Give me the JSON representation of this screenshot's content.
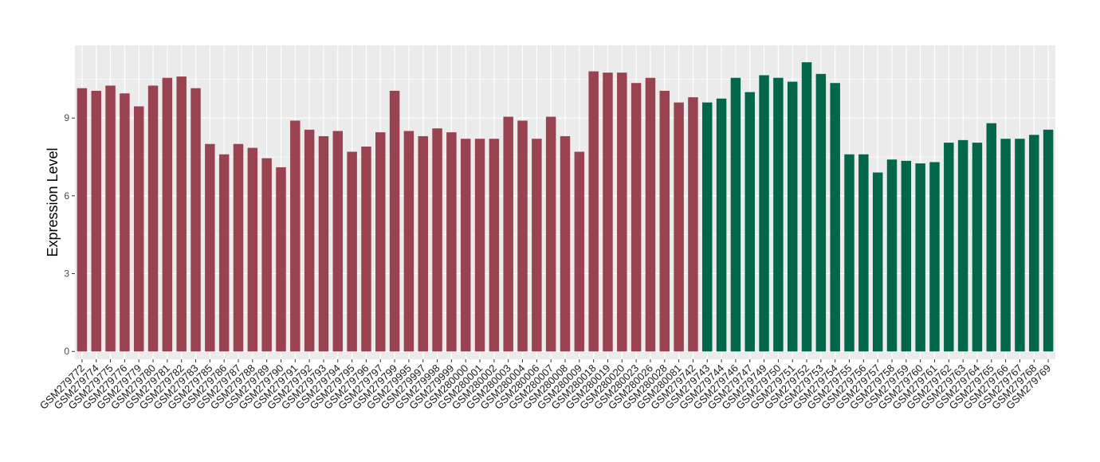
{
  "chart_data": {
    "type": "bar",
    "ylabel": "Expression Level",
    "xlabel": "",
    "ylim": [
      -0.3,
      11.8
    ],
    "yticks": [
      0,
      3,
      6,
      9
    ],
    "grid": true,
    "colors": {
      "group1": "#9a4350",
      "group2": "#02664a",
      "panel": "#ebebeb",
      "gridline": "#ffffff"
    },
    "group1_count": 44,
    "categories": [
      "GSM279772",
      "GSM279774",
      "GSM279775",
      "GSM279776",
      "GSM279779",
      "GSM279780",
      "GSM279781",
      "GSM279782",
      "GSM279783",
      "GSM279785",
      "GSM279786",
      "GSM279787",
      "GSM279788",
      "GSM279789",
      "GSM279790",
      "GSM279791",
      "GSM279792",
      "GSM279793",
      "GSM279794",
      "GSM279795",
      "GSM279796",
      "GSM279797",
      "GSM279799",
      "GSM279995",
      "GSM279997",
      "GSM279998",
      "GSM279999",
      "GSM280000",
      "GSM280001",
      "GSM280002",
      "GSM280003",
      "GSM280004",
      "GSM280006",
      "GSM280007",
      "GSM280008",
      "GSM280009",
      "GSM280018",
      "GSM280019",
      "GSM280020",
      "GSM280023",
      "GSM280026",
      "GSM280028",
      "GSM280081",
      "GSM279742",
      "GSM279743",
      "GSM279744",
      "GSM279746",
      "GSM279747",
      "GSM279749",
      "GSM279750",
      "GSM279751",
      "GSM279752",
      "GSM279753",
      "GSM279754",
      "GSM279755",
      "GSM279756",
      "GSM279757",
      "GSM279758",
      "GSM279759",
      "GSM279760",
      "GSM279761",
      "GSM279762",
      "GSM279763",
      "GSM279764",
      "GSM279765",
      "GSM279766",
      "GSM279767",
      "GSM279768",
      "GSM279769"
    ],
    "values": [
      10.15,
      10.05,
      10.25,
      9.95,
      9.45,
      10.25,
      10.55,
      10.6,
      10.15,
      8.0,
      7.6,
      8.0,
      7.85,
      7.45,
      7.1,
      8.9,
      8.55,
      8.3,
      8.5,
      7.7,
      7.9,
      8.45,
      10.05,
      8.5,
      8.3,
      8.6,
      8.45,
      8.2,
      8.2,
      8.2,
      9.05,
      8.9,
      8.2,
      9.05,
      8.3,
      7.7,
      10.8,
      10.75,
      10.75,
      10.35,
      10.55,
      10.05,
      9.6,
      9.8,
      9.6,
      9.75,
      10.55,
      10.0,
      10.65,
      10.55,
      10.4,
      11.15,
      10.7,
      10.35,
      7.6,
      7.6,
      6.9,
      7.4,
      7.35,
      7.25,
      7.3,
      8.05,
      8.15,
      8.05,
      8.8,
      8.2,
      8.2,
      8.35,
      8.55
    ]
  }
}
